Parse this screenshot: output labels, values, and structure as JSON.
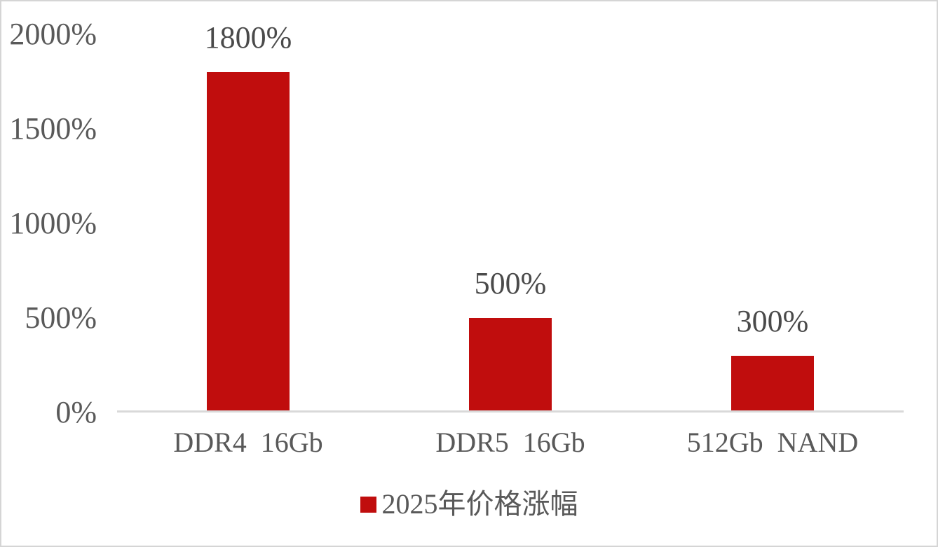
{
  "chart_data": {
    "type": "bar",
    "title": "",
    "xlabel": "",
    "ylabel": "",
    "categories": [
      "DDR4  16Gb",
      "DDR5  16Gb",
      "512Gb  NAND"
    ],
    "series": [
      {
        "name": "2025年价格涨幅",
        "values": [
          1800,
          500,
          300
        ]
      }
    ],
    "values": [
      1800,
      500,
      300
    ],
    "data_labels": [
      "1800%",
      "500%",
      "300%"
    ],
    "ylim": [
      0,
      2000
    ],
    "ytick_interval": 500,
    "yticks": [
      {
        "value": 2000,
        "label": "2000%"
      },
      {
        "value": 1500,
        "label": "1500%"
      },
      {
        "value": 1000,
        "label": "1000%"
      },
      {
        "value": 500,
        "label": "500%"
      },
      {
        "value": 0,
        "label": "0%"
      }
    ],
    "grid": false,
    "legend_position": "bottom-center",
    "colors": {
      "bar": "#C00D0D",
      "axis_text": "#595959",
      "data_label_text": "#4A4A4A",
      "category_text": "#595959",
      "axis_line": "#D9D9D9",
      "background": "#FFFFFF",
      "frame_border": "#D5D5D5"
    }
  },
  "legend": {
    "marker_icon": "red-square-icon",
    "marker_color": "#C00D0D",
    "label": "2025年价格涨幅"
  }
}
